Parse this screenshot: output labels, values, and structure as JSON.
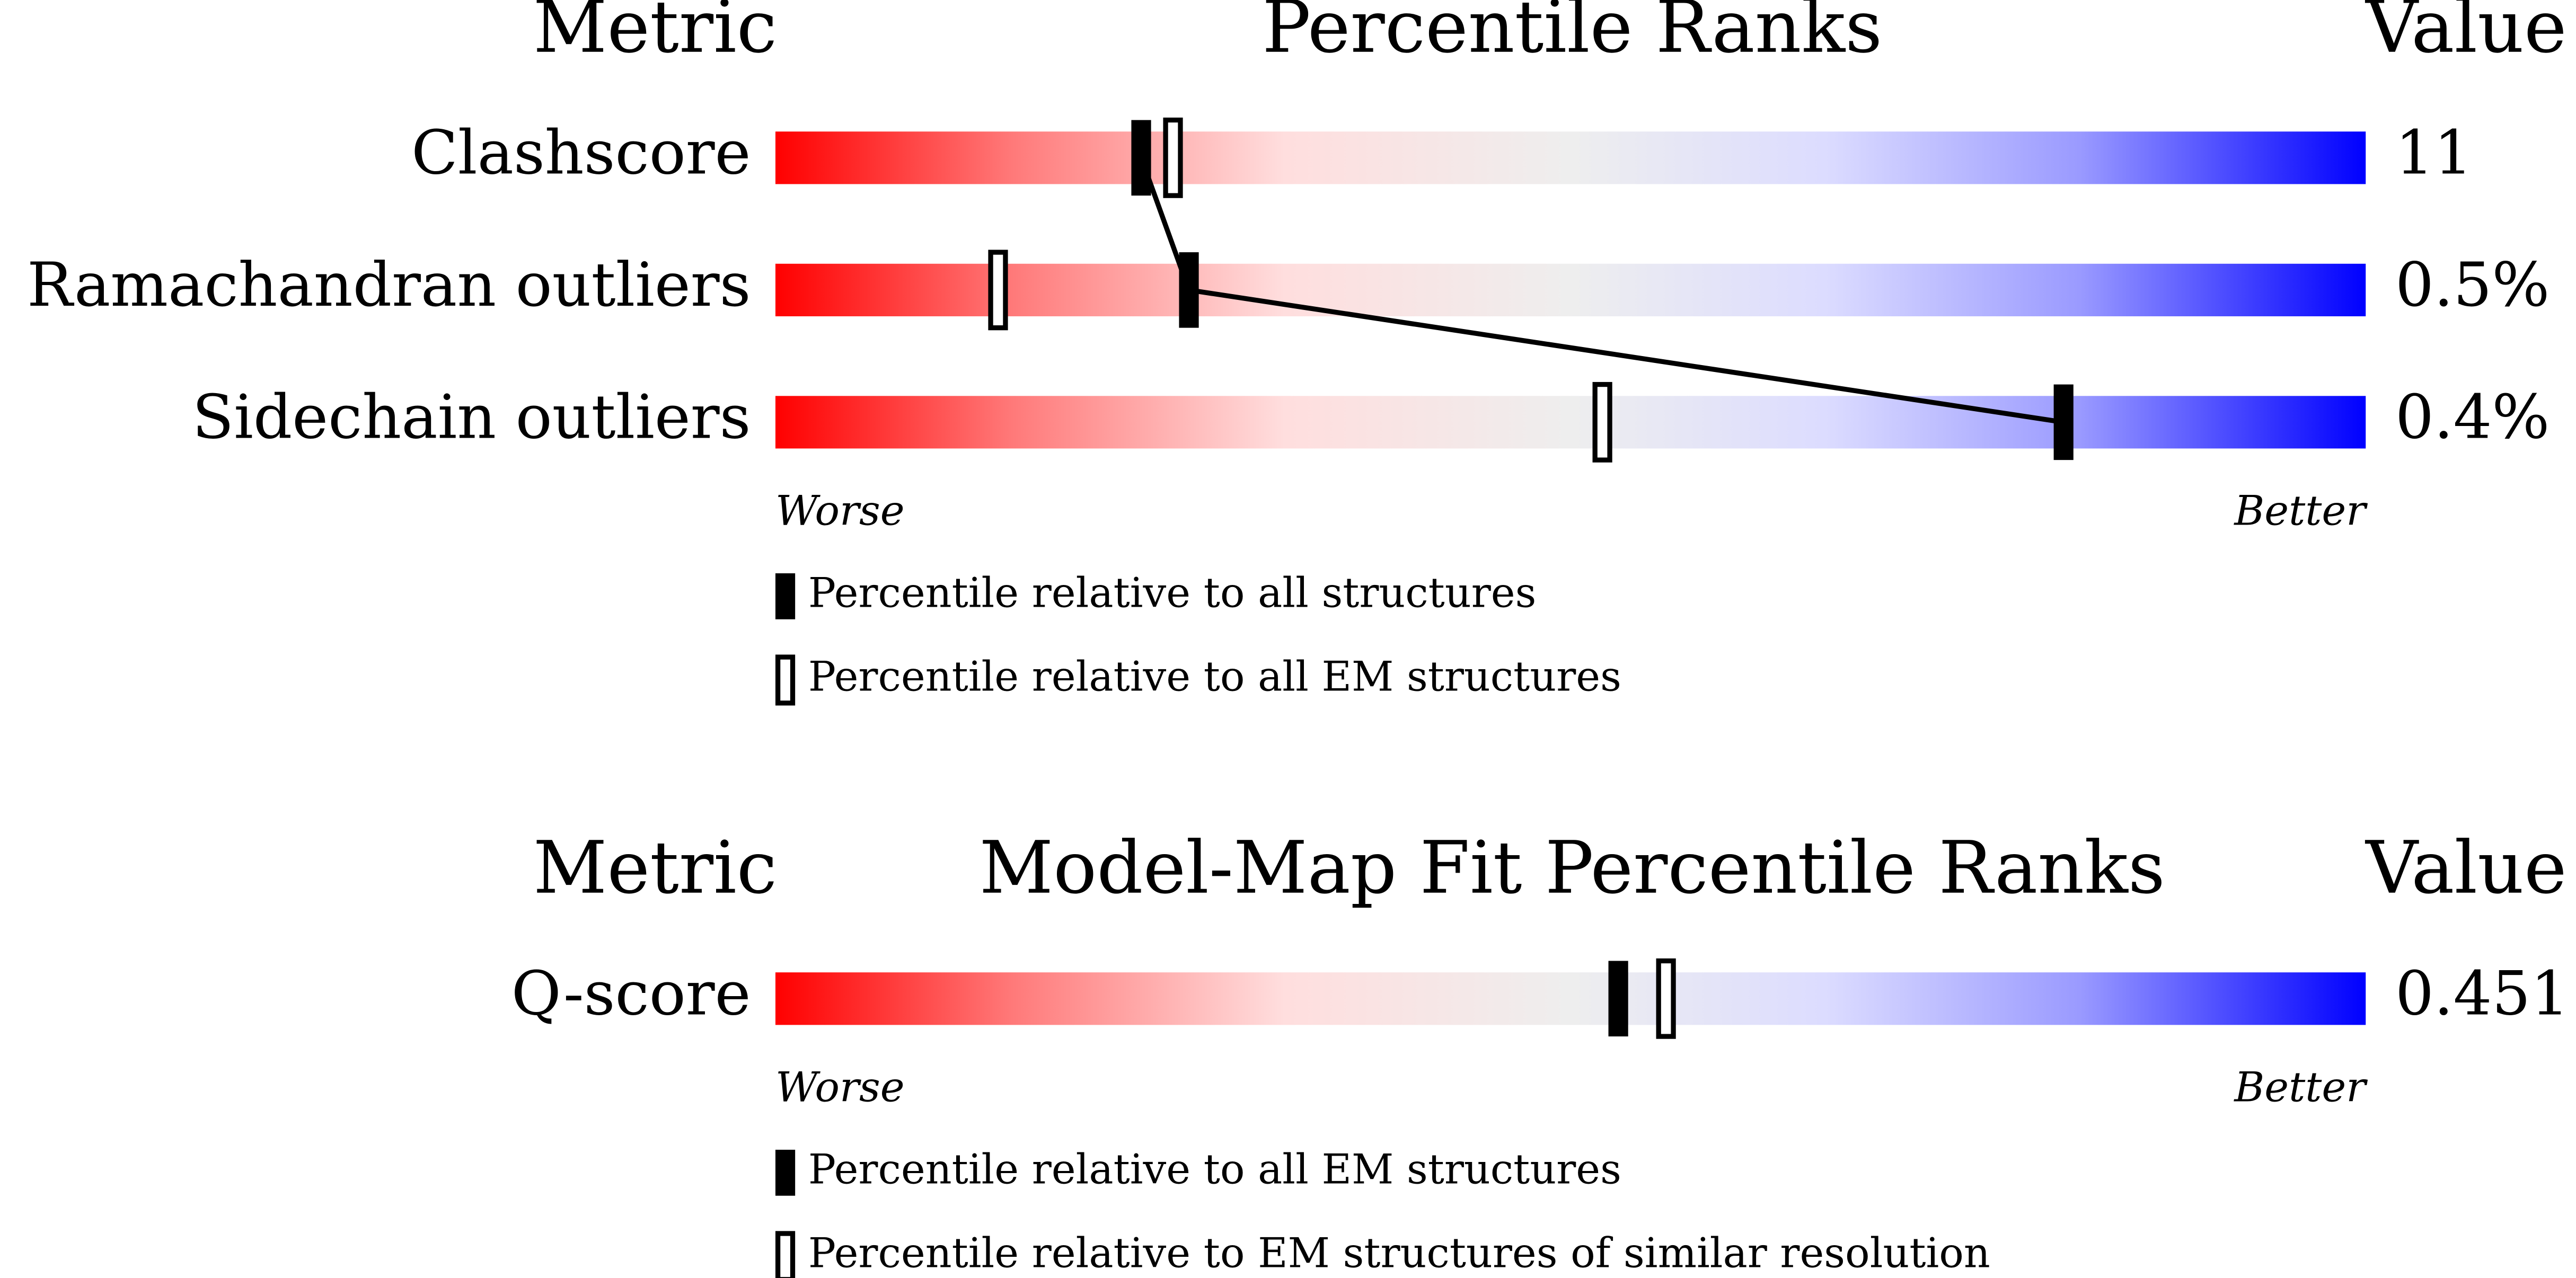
{
  "chart_data": [
    {
      "type": "percentile",
      "header": {
        "metric": "Metric",
        "title": "Percentile Ranks",
        "value": "Value"
      },
      "categories": [
        "Clashscore",
        "Ramachandran outliers",
        "Sidechain outliers"
      ],
      "metric_values": [
        "11",
        "0.5%",
        "0.4%"
      ],
      "xlim": [
        0,
        100
      ],
      "worse_label": "Worse",
      "better_label": "Better",
      "connect": true,
      "series": [
        {
          "name": "Percentile relative to all structures",
          "style": "filled",
          "color": "#000000",
          "values": [
            23,
            26,
            81
          ]
        },
        {
          "name": "Percentile relative to all EM structures",
          "style": "open",
          "color": "#000000",
          "values": [
            25,
            14,
            52
          ]
        }
      ]
    },
    {
      "type": "percentile",
      "header": {
        "metric": "Metric",
        "title": "Model-Map Fit Percentile Ranks",
        "value": "Value"
      },
      "categories": [
        "Q-score"
      ],
      "metric_values": [
        "0.451"
      ],
      "xlim": [
        0,
        100
      ],
      "worse_label": "Worse",
      "better_label": "Better",
      "connect": false,
      "series": [
        {
          "name": "Percentile relative to all EM structures",
          "style": "filled",
          "color": "#000000",
          "values": [
            53
          ]
        },
        {
          "name": "Percentile relative to EM structures of similar resolution",
          "style": "open",
          "color": "#000000",
          "values": [
            56
          ]
        }
      ]
    }
  ]
}
